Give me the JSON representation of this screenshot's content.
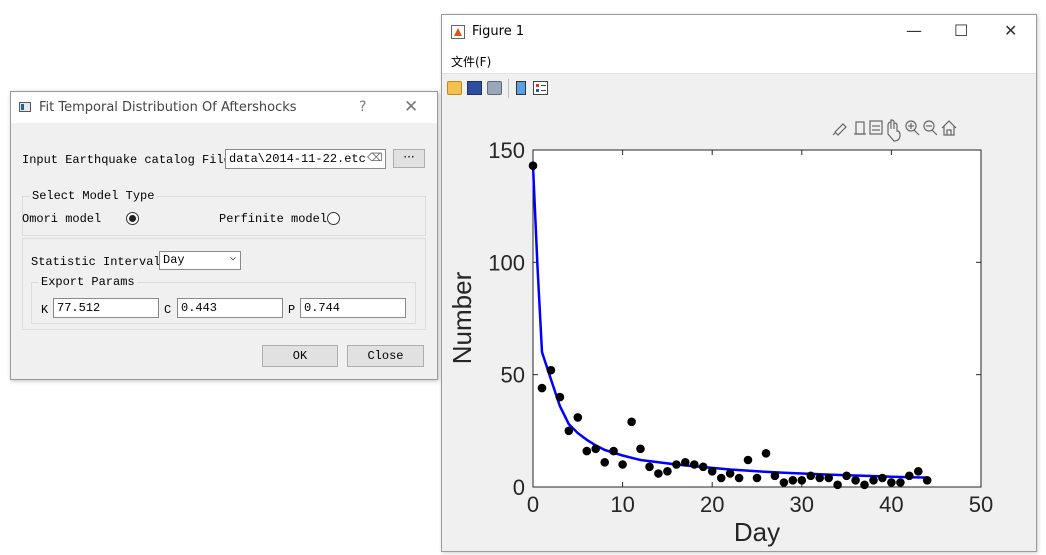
{
  "dialog": {
    "title": "Fit Temporal Distribution Of Aftershocks",
    "help_glyph": "?",
    "close_glyph": "✕",
    "input_label": "Input Earthquake catalog File",
    "file_value": "data\\2014-11-22.etc",
    "clear_glyph": "⌫",
    "browse_label": "···",
    "model_group_label": "Select Model Type",
    "omori_label": "Omori model",
    "omori_selected": true,
    "perfinite_label": "Perfinite model",
    "perfinite_selected": false,
    "interval_label": "Statistic Interval",
    "interval_value": "Day",
    "export_group_label": "Export Params",
    "k_label": "K",
    "k_value": "77.512",
    "c_label": "C",
    "c_value": "0.443",
    "p_label": "P",
    "p_value": "0.744",
    "ok_label": "OK",
    "close_label": "Close"
  },
  "figure": {
    "title": "Figure 1",
    "minimize_glyph": "—",
    "maximize_glyph": "☐",
    "close_glyph": "✕",
    "menu_file": "文件(F)"
  },
  "chart_data": {
    "type": "scatter",
    "xlabel": "Day",
    "ylabel": "Number",
    "xlim": [
      0,
      50
    ],
    "ylim": [
      0,
      150
    ],
    "xticks": [
      0,
      10,
      20,
      30,
      40,
      50
    ],
    "yticks": [
      0,
      50,
      100,
      150
    ],
    "series": [
      {
        "kind": "scatter",
        "color": "#000000",
        "points": [
          [
            0,
            143
          ],
          [
            1,
            44
          ],
          [
            2,
            52
          ],
          [
            3,
            40
          ],
          [
            4,
            25
          ],
          [
            5,
            31
          ],
          [
            6,
            16
          ],
          [
            7,
            17
          ],
          [
            8,
            11
          ],
          [
            9,
            16
          ],
          [
            10,
            10
          ],
          [
            11,
            29
          ],
          [
            12,
            17
          ],
          [
            13,
            9
          ],
          [
            14,
            6
          ],
          [
            15,
            7
          ],
          [
            16,
            10
          ],
          [
            17,
            11
          ],
          [
            18,
            10
          ],
          [
            19,
            9
          ],
          [
            20,
            7
          ],
          [
            21,
            4
          ],
          [
            22,
            6
          ],
          [
            23,
            4
          ],
          [
            24,
            12
          ],
          [
            25,
            4
          ],
          [
            26,
            15
          ],
          [
            27,
            5
          ],
          [
            28,
            2
          ],
          [
            29,
            3
          ],
          [
            30,
            3
          ],
          [
            31,
            5
          ],
          [
            32,
            4
          ],
          [
            33,
            4
          ],
          [
            34,
            1
          ],
          [
            35,
            5
          ],
          [
            36,
            3
          ],
          [
            37,
            1
          ],
          [
            38,
            3
          ],
          [
            39,
            4
          ],
          [
            40,
            2
          ],
          [
            41,
            2
          ],
          [
            42,
            5
          ],
          [
            43,
            7
          ],
          [
            44,
            3
          ]
        ]
      },
      {
        "kind": "line",
        "color": "#0000ff",
        "points": [
          [
            0,
            143
          ],
          [
            0.5,
            98
          ],
          [
            1,
            60
          ],
          [
            2,
            48
          ],
          [
            3,
            36
          ],
          [
            4,
            28
          ],
          [
            5,
            24
          ],
          [
            6,
            21
          ],
          [
            7,
            18.5
          ],
          [
            8,
            16.5
          ],
          [
            10,
            14
          ],
          [
            12,
            12
          ],
          [
            14,
            11
          ],
          [
            16,
            10
          ],
          [
            18,
            9.2
          ],
          [
            20,
            8.5
          ],
          [
            22,
            7.8
          ],
          [
            25,
            7
          ],
          [
            28,
            6.3
          ],
          [
            30,
            6
          ],
          [
            33,
            5.5
          ],
          [
            36,
            5.1
          ],
          [
            40,
            4.6
          ],
          [
            44,
            4.2
          ]
        ]
      }
    ]
  }
}
